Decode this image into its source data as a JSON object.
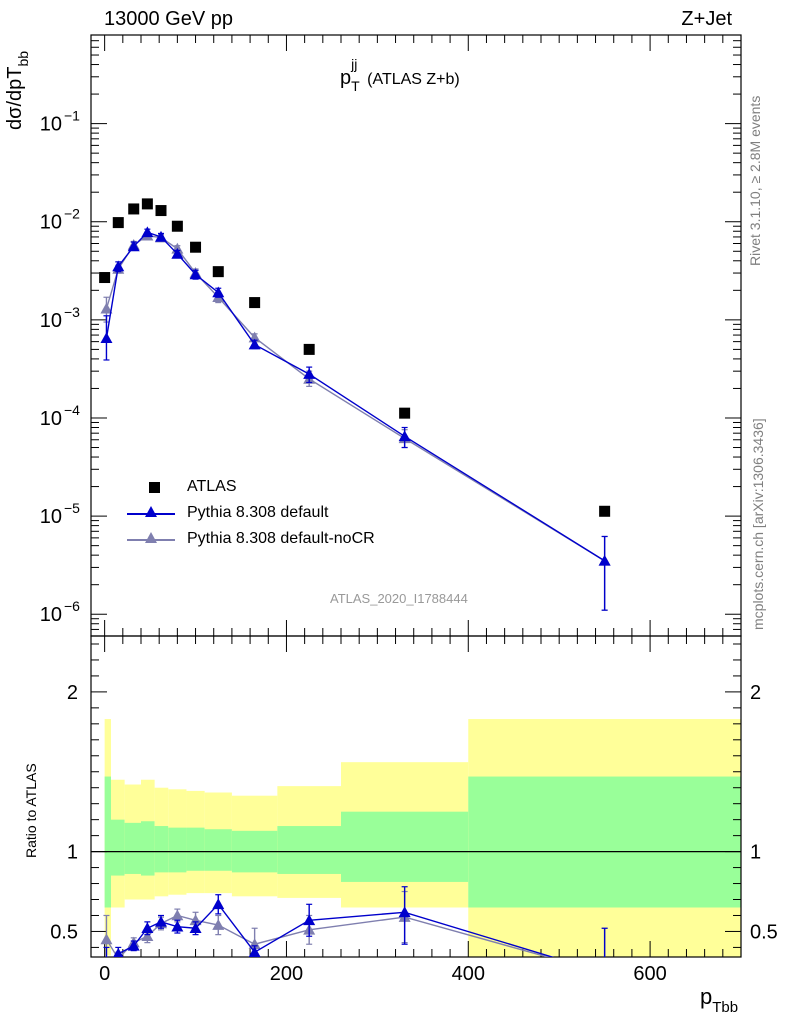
{
  "header": {
    "energy_label": "13000 GeV pp",
    "process_label": "Z+Jet"
  },
  "side": {
    "rivet_label": "Rivet 3.1.10, ≥ 2.8M events",
    "mcplots_label": "mcplots.cern.ch [arXiv:1306.3436]"
  },
  "chart_data": [
    {
      "type": "scatter",
      "title_main": "p",
      "title_sup": "jj",
      "title_sub": "T",
      "title_suffix": "(ATLAS Z+b)",
      "ylabel_main": "dσ/dpT",
      "ylabel_sub": "bb",
      "analysis_label": "ATLAS_2020_I1788444",
      "yscale": "log",
      "ylim": [
        6e-07,
        0.8
      ],
      "xlim": [
        -15,
        700
      ],
      "y_tick_labels": [
        {
          "base": "10",
          "exp": "−6",
          "value": 1e-06
        },
        {
          "base": "10",
          "exp": "−5",
          "value": 1e-05
        },
        {
          "base": "10",
          "exp": "−4",
          "value": 0.0001
        },
        {
          "base": "10",
          "exp": "−3",
          "value": 0.001
        },
        {
          "base": "10",
          "exp": "−2",
          "value": 0.01
        },
        {
          "base": "10",
          "exp": "−1",
          "value": 0.1
        }
      ],
      "legend_position": "bottom-left",
      "series": [
        {
          "name": "ATLAS",
          "color": "#000000",
          "marker": "square",
          "x": [
            0,
            15,
            32,
            47,
            62,
            80,
            100,
            125,
            165,
            225,
            330,
            550
          ],
          "y": [
            0.0027,
            0.0098,
            0.0135,
            0.0152,
            0.013,
            0.009,
            0.0055,
            0.0031,
            0.0015,
            0.0005,
            0.000112,
            1.12e-05
          ]
        },
        {
          "name": "Pythia 8.308 default",
          "color": "#0000cc",
          "marker": "triangle",
          "x": [
            2,
            15,
            32,
            47,
            62,
            80,
            100,
            125,
            165,
            225,
            330,
            550
          ],
          "y": [
            0.00065,
            0.0035,
            0.0056,
            0.0078,
            0.007,
            0.0047,
            0.0029,
            0.0019,
            0.00056,
            0.00028,
            6.5e-05,
            3.5e-06
          ],
          "err_lo": [
            0.00039,
            0.0031,
            0.0051,
            0.0072,
            0.0065,
            0.0043,
            0.0026,
            0.0017,
            0.00051,
            0.00023,
            5e-05,
            1.1e-06
          ],
          "err_hi": [
            0.0011,
            0.0039,
            0.0062,
            0.0084,
            0.0076,
            0.0051,
            0.0032,
            0.0021,
            0.00062,
            0.00033,
            8e-05,
            6.2e-06
          ]
        },
        {
          "name": "Pythia 8.308 default-noCR",
          "color": "#7f7faf",
          "marker": "triangle",
          "x": [
            2,
            15,
            32,
            47,
            62,
            80,
            100,
            125,
            165,
            225,
            330,
            550
          ],
          "y": [
            0.0013,
            0.0033,
            0.0058,
            0.0072,
            0.0069,
            0.0053,
            0.003,
            0.0017,
            0.00066,
            0.00025,
            6.2e-05,
            3.5e-06
          ],
          "err_lo": [
            0.00095,
            0.003,
            0.0053,
            0.0067,
            0.0064,
            0.0049,
            0.0027,
            0.0015,
            0.0006,
            0.00021,
            5e-05,
            1.1e-06
          ],
          "err_hi": [
            0.0017,
            0.0036,
            0.0063,
            0.0077,
            0.0074,
            0.0057,
            0.0033,
            0.0019,
            0.00072,
            0.0003,
            7.6e-05,
            6.2e-06
          ]
        }
      ]
    },
    {
      "type": "scatter",
      "ylabel": "Ratio to ATLAS",
      "xlabel_main": "p",
      "xlabel_sub": "Tbb",
      "ylim": [
        0.34,
        2.35
      ],
      "xlim": [
        -15,
        700
      ],
      "x_tick_labels": [
        "0",
        "200",
        "400",
        "600"
      ],
      "x_tick_values": [
        0,
        200,
        400,
        600
      ],
      "y_tick_labels": [
        "0.5",
        "1",
        "2"
      ],
      "y_tick_values": [
        0.5,
        1,
        2
      ],
      "reference_line": 1,
      "bands": {
        "yellow_color": "#ffff99",
        "green_color": "#99ff99",
        "bins": [
          {
            "x0": 0,
            "x1": 7,
            "yellow": [
              0.35,
              1.83
            ],
            "green": [
              0.65,
              1.47
            ]
          },
          {
            "x0": 7,
            "x1": 22,
            "yellow": [
              0.65,
              1.45
            ],
            "green": [
              0.85,
              1.2
            ]
          },
          {
            "x0": 22,
            "x1": 40,
            "yellow": [
              0.7,
              1.42
            ],
            "green": [
              0.86,
              1.18
            ]
          },
          {
            "x0": 40,
            "x1": 55,
            "yellow": [
              0.7,
              1.45
            ],
            "green": [
              0.85,
              1.19
            ]
          },
          {
            "x0": 55,
            "x1": 70,
            "yellow": [
              0.72,
              1.4
            ],
            "green": [
              0.87,
              1.16
            ]
          },
          {
            "x0": 70,
            "x1": 90,
            "yellow": [
              0.73,
              1.39
            ],
            "green": [
              0.87,
              1.15
            ]
          },
          {
            "x0": 90,
            "x1": 110,
            "yellow": [
              0.74,
              1.38
            ],
            "green": [
              0.88,
              1.15
            ]
          },
          {
            "x0": 110,
            "x1": 140,
            "yellow": [
              0.74,
              1.37
            ],
            "green": [
              0.88,
              1.14
            ]
          },
          {
            "x0": 140,
            "x1": 190,
            "yellow": [
              0.72,
              1.35
            ],
            "green": [
              0.87,
              1.13
            ]
          },
          {
            "x0": 190,
            "x1": 260,
            "yellow": [
              0.71,
              1.41
            ],
            "green": [
              0.86,
              1.16
            ]
          },
          {
            "x0": 260,
            "x1": 400,
            "yellow": [
              0.65,
              1.56
            ],
            "green": [
              0.81,
              1.25
            ]
          },
          {
            "x0": 400,
            "x1": 700,
            "yellow": [
              0.34,
              1.83
            ],
            "green": [
              0.65,
              1.47
            ]
          }
        ]
      },
      "series": [
        {
          "name": "Pythia 8.308 default",
          "color": "#0000cc",
          "x": [
            2,
            15,
            32,
            47,
            62,
            80,
            100,
            125,
            165,
            225,
            330,
            550
          ],
          "y": [
            0.24,
            0.36,
            0.41,
            0.52,
            0.56,
            0.53,
            0.52,
            0.67,
            0.37,
            0.57,
            0.62,
            0.24
          ],
          "err_lo": [
            0.14,
            0.32,
            0.38,
            0.48,
            0.52,
            0.49,
            0.48,
            0.61,
            0.33,
            0.47,
            0.42,
            0.08
          ],
          "err_hi": [
            0.4,
            0.4,
            0.44,
            0.56,
            0.6,
            0.57,
            0.56,
            0.73,
            0.41,
            0.67,
            0.78,
            0.52
          ]
        },
        {
          "name": "Pythia 8.308 default-noCR",
          "color": "#7f7faf",
          "x": [
            2,
            15,
            32,
            47,
            62,
            80,
            100,
            125,
            165,
            225,
            330,
            550
          ],
          "y": [
            0.45,
            0.33,
            0.43,
            0.47,
            0.55,
            0.6,
            0.57,
            0.54,
            0.42,
            0.51,
            0.59,
            0.24
          ],
          "err_lo": [
            0.3,
            0.29,
            0.4,
            0.43,
            0.51,
            0.56,
            0.52,
            0.48,
            0.36,
            0.42,
            0.43,
            0.08
          ],
          "err_hi": [
            0.6,
            0.37,
            0.46,
            0.51,
            0.59,
            0.64,
            0.62,
            0.6,
            0.52,
            0.6,
            0.75,
            0.52
          ]
        }
      ]
    }
  ]
}
